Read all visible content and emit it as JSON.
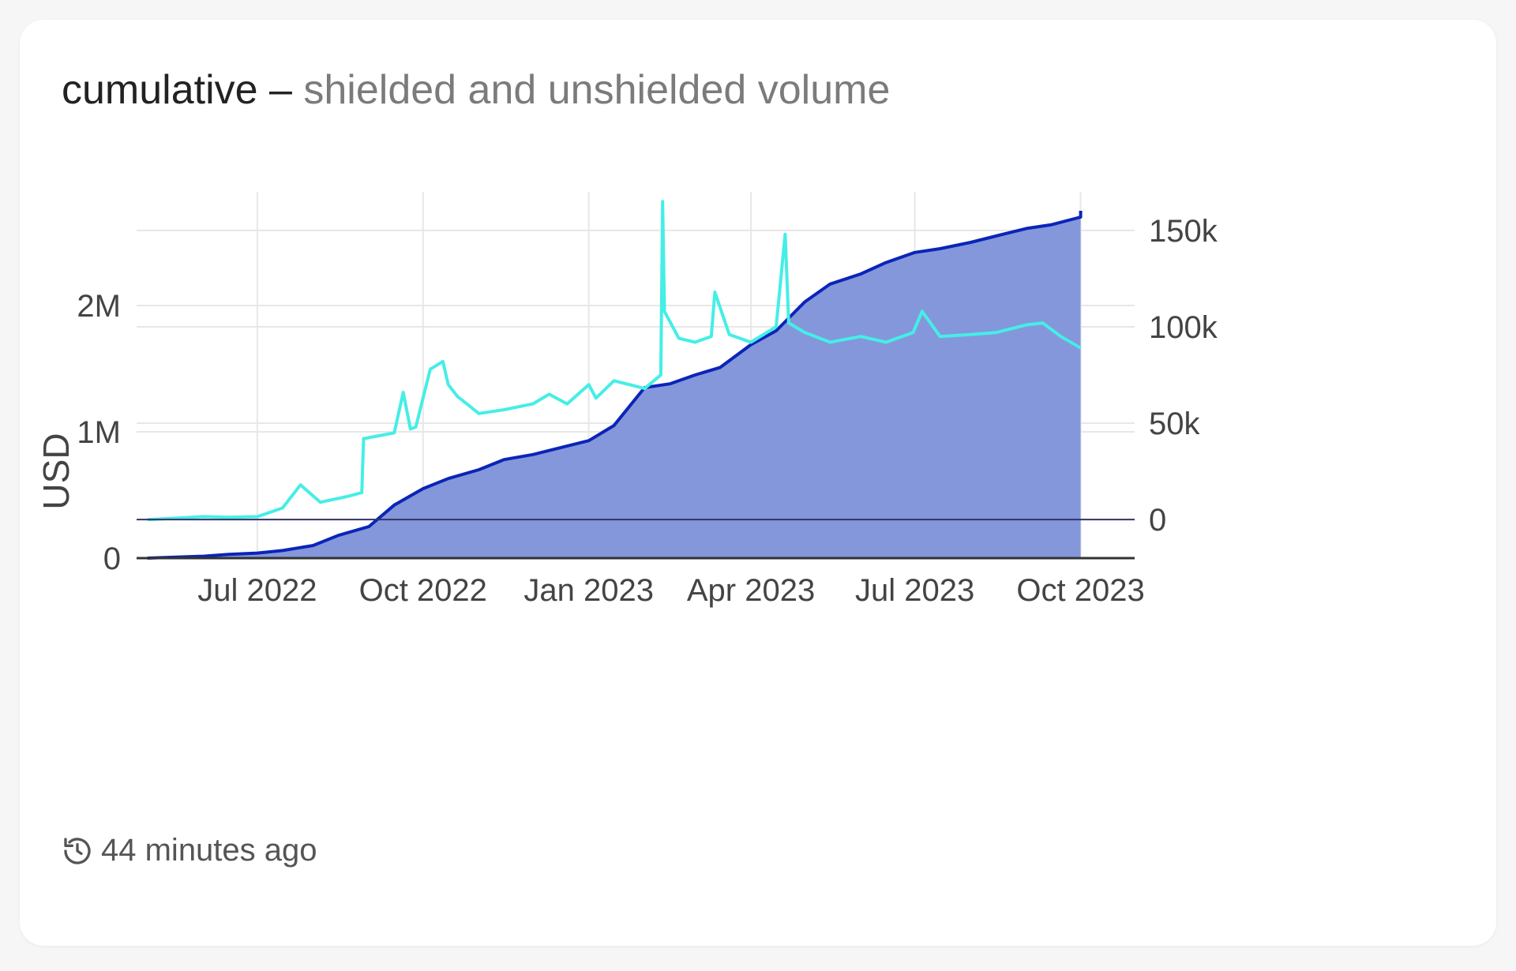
{
  "card": {
    "title_main": "cumulative",
    "title_dash": " – ",
    "title_sub": "shielded and unshielded volume",
    "updated": "44 minutes ago",
    "updated_icon": "history-icon"
  },
  "colors": {
    "cumulative_line": "#0b25b8",
    "cumulative_fill": "#8497db",
    "daily_line": "#45eee6",
    "grid": "#e7e7e7",
    "axis": "#333333",
    "text": "#444444"
  },
  "chart_data": {
    "type": "area",
    "title": "",
    "xlabel": "",
    "ylabel": "USD",
    "y2label": "",
    "xlim": [
      "2022-04-25",
      "2023-10-31"
    ],
    "ylim": [
      0,
      2900000
    ],
    "y2lim": [
      -20000,
      170000
    ],
    "x_ticks": [
      "Jul 2022",
      "Oct 2022",
      "Jan 2023",
      "Apr 2023",
      "Jul 2023",
      "Oct 2023"
    ],
    "x_tick_dates": [
      "2022-07-01",
      "2022-10-01",
      "2023-01-01",
      "2023-04-01",
      "2023-07-01",
      "2023-10-01"
    ],
    "y_ticks": [
      "0",
      "1M",
      "2M"
    ],
    "y_tick_values": [
      0,
      1000000,
      2000000
    ],
    "y2_ticks": [
      "0",
      "50k",
      "100k",
      "150k"
    ],
    "y2_tick_values": [
      0,
      50000,
      100000,
      150000
    ],
    "grid": true,
    "legend": "none",
    "series": [
      {
        "axis": "left",
        "style": "area",
        "x": [
          "2022-05-01",
          "2022-06-01",
          "2022-06-15",
          "2022-07-01",
          "2022-07-15",
          "2022-08-01",
          "2022-08-15",
          "2022-09-01",
          "2022-09-15",
          "2022-10-01",
          "2022-10-15",
          "2022-11-01",
          "2022-11-15",
          "2022-12-01",
          "2022-12-15",
          "2023-01-01",
          "2023-01-15",
          "2023-02-01",
          "2023-02-15",
          "2023-03-01",
          "2023-03-15",
          "2023-04-01",
          "2023-04-15",
          "2023-05-01",
          "2023-05-15",
          "2023-06-01",
          "2023-06-15",
          "2023-07-01",
          "2023-07-15",
          "2023-08-01",
          "2023-08-15",
          "2023-09-01",
          "2023-09-15",
          "2023-10-01",
          "2023-10-01"
        ],
        "values": [
          0,
          15000,
          30000,
          40000,
          60000,
          100000,
          180000,
          250000,
          420000,
          550000,
          630000,
          700000,
          780000,
          820000,
          870000,
          930000,
          1050000,
          1350000,
          1380000,
          1450000,
          1510000,
          1690000,
          1800000,
          2030000,
          2170000,
          2250000,
          2340000,
          2420000,
          2450000,
          2500000,
          2550000,
          2610000,
          2640000,
          2700000,
          2750000
        ]
      },
      {
        "axis": "right",
        "style": "line",
        "x": [
          "2022-05-01",
          "2022-06-01",
          "2022-06-15",
          "2022-07-01",
          "2022-07-15",
          "2022-07-25",
          "2022-08-05",
          "2022-08-20",
          "2022-08-28",
          "2022-08-29",
          "2022-09-15",
          "2022-09-20",
          "2022-09-24",
          "2022-09-27",
          "2022-10-05",
          "2022-10-12",
          "2022-10-15",
          "2022-10-20",
          "2022-11-01",
          "2022-11-15",
          "2022-12-01",
          "2022-12-10",
          "2022-12-20",
          "2023-01-01",
          "2023-01-05",
          "2023-01-15",
          "2023-02-01",
          "2023-02-10",
          "2023-02-11",
          "2023-02-12",
          "2023-02-20",
          "2023-03-01",
          "2023-03-10",
          "2023-03-12",
          "2023-03-20",
          "2023-04-01",
          "2023-04-15",
          "2023-04-20",
          "2023-04-22",
          "2023-05-01",
          "2023-05-15",
          "2023-06-01",
          "2023-06-15",
          "2023-06-30",
          "2023-07-05",
          "2023-07-15",
          "2023-08-01",
          "2023-08-15",
          "2023-09-01",
          "2023-09-10",
          "2023-09-20",
          "2023-10-01"
        ],
        "values": [
          0,
          1500,
          1200,
          1500,
          6000,
          18000,
          9000,
          12000,
          14000,
          42000,
          45000,
          66000,
          47000,
          48000,
          78000,
          82000,
          70000,
          64000,
          55000,
          57000,
          60000,
          65000,
          60000,
          70000,
          63000,
          72000,
          68000,
          75000,
          165000,
          108000,
          94000,
          92000,
          95000,
          118000,
          96000,
          92000,
          100000,
          148000,
          102000,
          97000,
          92000,
          95000,
          92000,
          97000,
          108000,
          95000,
          96000,
          97000,
          101000,
          102000,
          95000,
          89000
        ]
      }
    ]
  }
}
